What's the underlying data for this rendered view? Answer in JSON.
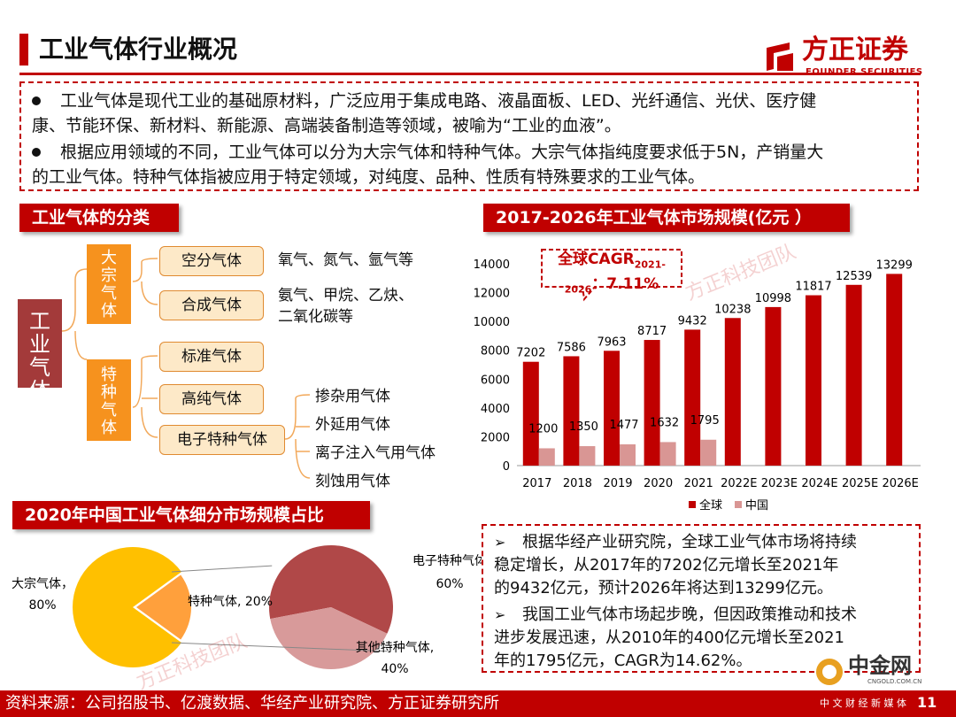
{
  "header": {
    "title": "工业气体行业概况"
  },
  "logo": {
    "name_cn": "方正证券",
    "name_en": "FOUNDER SECURITIES"
  },
  "intro": {
    "bullets": [
      [
        "工业气体是现代工业的基础原材料，广泛应用于集成电路、液晶面板、LED、光纤通信、光伏、医疗健",
        "康、节能环保、新材料、新能源、高端装备制造等领域，被喻为“工业的血液”。"
      ],
      [
        "根据应用领域的不同，工业气体可以分为大宗气体和特种气体。大宗气体指纯度要求低于5N，产销量大",
        "的工业气体。特种气体指被应用于特定领域，对纯度、品种、性质有特殊要求的工业气体。"
      ]
    ]
  },
  "classification": {
    "heading": "工业气体的分类",
    "root": "工业气体",
    "bulk": "大宗气体",
    "special": "特种气体",
    "bulk_items": [
      {
        "label": "空分气体",
        "note": [
          "氧气、氮气、氩气等"
        ]
      },
      {
        "label": "合成气体",
        "note": [
          "氨气、甲烷、乙炔、",
          "二氧化碳等"
        ]
      }
    ],
    "special_items": [
      "标准气体",
      "高纯气体",
      "电子特种气体"
    ],
    "electronic_items": [
      "掺杂用气体",
      "外延用气体",
      "离子注入气用气体",
      "刻蚀用气体"
    ]
  },
  "bar_section": {
    "heading": "2017-2026年工业气体市场规模(亿元 ）"
  },
  "cagr_callout": {
    "line1": "全球CAGR",
    "sub1": "2021-",
    "sub2": "2026",
    "line2": "：7.11%"
  },
  "chart_data": [
    {
      "type": "bar",
      "categories": [
        "2017",
        "2018",
        "2019",
        "2020",
        "2021",
        "2022E",
        "2023E",
        "2024E",
        "2025E",
        "2026E"
      ],
      "series": [
        {
          "name": "全球",
          "values": [
            7202,
            7586,
            7963,
            8717,
            9432,
            10238,
            10998,
            11817,
            12539,
            13299
          ],
          "color": "#c00000"
        },
        {
          "name": "中国",
          "values": [
            1200,
            1350,
            1477,
            1632,
            1795,
            null,
            null,
            null,
            null,
            null
          ],
          "color": "#d99694"
        }
      ],
      "ylim": [
        0,
        14000
      ],
      "yticks": [
        0,
        2000,
        4000,
        6000,
        8000,
        10000,
        12000,
        14000
      ],
      "legend": "bottom"
    },
    {
      "type": "pie",
      "title": "2020年中国工业气体细分市场规模占比",
      "slices": [
        {
          "label": "大宗气体，",
          "value_text": "80%",
          "value": 80,
          "color": "#ffc000"
        },
        {
          "label": "特种气体, 20%",
          "value": 20,
          "color": "#ffa03c"
        }
      ],
      "sub_slices": [
        {
          "label": "电子特种气体",
          "value_text": "60%",
          "value": 60,
          "color": "#b04848"
        },
        {
          "label": "其他特种气体,",
          "value_text": "40%",
          "value": 40,
          "color": "#d89a9a"
        }
      ]
    }
  ],
  "notes": [
    [
      "根据华经产业研究院，全球工业气体市场将持续",
      "稳定增长，从2017年的7202亿元增长至2021年",
      "的9432亿元，预计2026年将达到13299亿元。"
    ],
    [
      "我国工业气体市场起步晚，但因政策推动和技术",
      "进步发展迅速，从2010年的400亿元增长至2021",
      "年的1795亿元，CAGR为14.62%。"
    ]
  ],
  "watermark": "方正科技团队",
  "footer": {
    "source": "资料来源：公司招股书、亿渡数据、华经产业研究院、方正证券研究所",
    "page": "11"
  },
  "badge": {
    "name": "中金网",
    "domain": "CNGOLD.COM.CN",
    "tagline": "中 文 财 经 新 媒 体"
  }
}
